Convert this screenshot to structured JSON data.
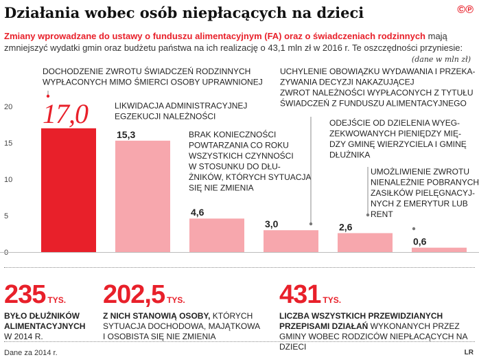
{
  "header": {
    "title": "Działania wobec osób niepłacących na dzieci",
    "logo": "©℗",
    "subtitle_highlight": "Zmiany wprowadzane do ustawy o funduszu alimentacyjnym (FA) oraz o świadczeniach rodzinnych",
    "subtitle_rest": " mają zmniejszyć wydatki gmin oraz budżetu państwa na ich realizację o 43,1 mln zł w 2016 r. Te oszczędności przyniesie:",
    "unit": "(dane w mln zł)"
  },
  "chart_data": {
    "type": "bar",
    "ylim": [
      0,
      20
    ],
    "yticks": [
      "0",
      "5",
      "10",
      "15",
      "20"
    ],
    "grid": false,
    "bar_color": "#f7a7ad",
    "highlight_color": "#e8202a",
    "bars": [
      {
        "value": 17.0,
        "label": "17,0",
        "highlight": true,
        "description": [
          "DOCHODZENIE ZWROTU ŚWIADCZEŃ RODZINNYCH",
          "WYPŁACONYCH MIMO ŚMIERCI OSOBY UPRAWNIONEJ"
        ]
      },
      {
        "value": 15.3,
        "label": "15,3",
        "highlight": false,
        "description": [
          "LIKWIDACJA ADMINISTRACYJNEJ",
          "EGZEKUCJI NALEŻNOŚCI"
        ]
      },
      {
        "value": 4.6,
        "label": "4,6",
        "highlight": false,
        "description": [
          "BRAK KONIECZNOŚCI",
          "POWTARZANIA CO ROKU",
          "WSZYSTKICH CZYNNOŚCI",
          "W STOSUNKU DO DŁU-",
          "ŻNIKÓW, KTÓRYCH SYTUACJA",
          "SIĘ NIE ZMIENIA"
        ]
      },
      {
        "value": 3.0,
        "label": "3,0",
        "highlight": false,
        "description": [
          "UCHYLENIE OBOWIĄZKU WYDAWANIA I PRZEKA-",
          "ZYWANIA DECYZJI NAKAZUJĄCEJ",
          "ZWROT NALEŻNOŚCI WYPŁACONYCH Z TYTUŁU",
          "ŚWIADCZEŃ Z FUNDUSZU ALIMENTACYJNEGO"
        ]
      },
      {
        "value": 2.6,
        "label": "2,6",
        "highlight": false,
        "description": [
          "ODEJŚCIE OD DZIELENIA WYEG-",
          "ZEKWOWANYCH PIENIĘDZY MIĘ-",
          "DZY GMINĘ WIERZYCIELA I GMINĘ",
          "DŁUŻNIKA"
        ]
      },
      {
        "value": 0.6,
        "label": "0,6",
        "highlight": false,
        "description": [
          "UMOŻLIWIENIE ZWROTU",
          "NIENALEŻNIE POBRANYCH",
          "ZASIŁKÓW PIELĘGNACYJ-",
          "NYCH Z EMERYTUR LUB",
          "RENT"
        ]
      }
    ]
  },
  "stats": [
    {
      "number": "235",
      "suffix": "TYS.",
      "bold": "BYŁO DŁUŻNIKÓW ALIMENTACYJNYCH",
      "rest": " W 2014 R."
    },
    {
      "number": "202,5",
      "suffix": "TYS.",
      "bold": "Z NICH STANOWIĄ OSOBY,",
      "rest": " KTÓRYCH SYTUACJA DOCHODOWA, MAJĄTKOWA I OSOBISTA SIĘ NIE ZMIENIA"
    },
    {
      "number": "431",
      "suffix": "TYS.",
      "bold": "LICZBA WSZYSTKICH PRZEWIDZIANYCH PRZEPISAMI DZIAŁAŃ",
      "rest": " WYKONANYCH PRZEZ GMINY WOBEC RODZICÓW NIEPŁACĄCYCH NA DZIECI"
    }
  ],
  "footer": {
    "source": "Dane za 2014 r.",
    "credit": "LR"
  }
}
